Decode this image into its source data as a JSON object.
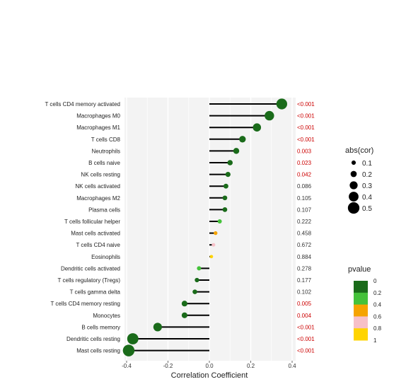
{
  "chart_data": {
    "type": "lollipop",
    "xlabel": "Correlation Coefficient",
    "xlim": [
      -0.4,
      0.45
    ],
    "xticks": [
      -0.4,
      -0.2,
      0.0,
      0.2,
      0.4
    ],
    "xtick_labels": [
      "-0.4",
      "-0.2",
      "0.0",
      "0.2",
      "0.4"
    ],
    "grid": true,
    "rows": [
      {
        "label": "T cells CD4 memory activated",
        "cor": 0.35,
        "pvalue_label": "<0.001",
        "pvalue": 0.0005,
        "significant": true
      },
      {
        "label": "Macrophages M0",
        "cor": 0.29,
        "pvalue_label": "<0.001",
        "pvalue": 0.0005,
        "significant": true
      },
      {
        "label": "Macrophages M1",
        "cor": 0.23,
        "pvalue_label": "<0.001",
        "pvalue": 0.0005,
        "significant": true
      },
      {
        "label": "T cells CD8",
        "cor": 0.16,
        "pvalue_label": "<0.001",
        "pvalue": 0.0005,
        "significant": true
      },
      {
        "label": "Neutrophils",
        "cor": 0.13,
        "pvalue_label": "0.003",
        "pvalue": 0.003,
        "significant": true
      },
      {
        "label": "B cells naive",
        "cor": 0.1,
        "pvalue_label": "0.023",
        "pvalue": 0.023,
        "significant": true
      },
      {
        "label": "NK cells resting",
        "cor": 0.09,
        "pvalue_label": "0.042",
        "pvalue": 0.042,
        "significant": true
      },
      {
        "label": "NK cells activated",
        "cor": 0.08,
        "pvalue_label": "0.086",
        "pvalue": 0.086,
        "significant": false
      },
      {
        "label": "Macrophages M2",
        "cor": 0.075,
        "pvalue_label": "0.105",
        "pvalue": 0.105,
        "significant": false
      },
      {
        "label": "Plasma cells",
        "cor": 0.075,
        "pvalue_label": "0.107",
        "pvalue": 0.107,
        "significant": false
      },
      {
        "label": "T cells follicular helper",
        "cor": 0.05,
        "pvalue_label": "0.222",
        "pvalue": 0.222,
        "significant": false
      },
      {
        "label": "Mast cells activated",
        "cor": 0.03,
        "pvalue_label": "0.458",
        "pvalue": 0.458,
        "significant": false
      },
      {
        "label": "T cells CD4 naive",
        "cor": 0.02,
        "pvalue_label": "0.672",
        "pvalue": 0.672,
        "significant": false
      },
      {
        "label": "Eosinophils",
        "cor": 0.01,
        "pvalue_label": "0.884",
        "pvalue": 0.884,
        "significant": false
      },
      {
        "label": "Dendritic cells activated",
        "cor": -0.05,
        "pvalue_label": "0.278",
        "pvalue": 0.278,
        "significant": false
      },
      {
        "label": "T cells regulatory (Tregs)",
        "cor": -0.06,
        "pvalue_label": "0.177",
        "pvalue": 0.177,
        "significant": false
      },
      {
        "label": "T cells gamma delta",
        "cor": -0.07,
        "pvalue_label": "0.102",
        "pvalue": 0.102,
        "significant": false
      },
      {
        "label": "T cells CD4 memory resting",
        "cor": -0.12,
        "pvalue_label": "0.005",
        "pvalue": 0.005,
        "significant": true
      },
      {
        "label": "Monocytes",
        "cor": -0.12,
        "pvalue_label": "0.004",
        "pvalue": 0.004,
        "significant": true
      },
      {
        "label": "B cells memory",
        "cor": -0.25,
        "pvalue_label": "<0.001",
        "pvalue": 0.0005,
        "significant": true
      },
      {
        "label": "Dendritic cells resting",
        "cor": -0.37,
        "pvalue_label": "<0.001",
        "pvalue": 0.0005,
        "significant": true
      },
      {
        "label": "Mast cells resting",
        "cor": -0.39,
        "pvalue_label": "<0.001",
        "pvalue": 0.0005,
        "significant": true
      }
    ],
    "size_legend": {
      "title": "abs(cor)",
      "items": [
        {
          "label": "0.1",
          "value": 0.1
        },
        {
          "label": "0.2",
          "value": 0.2
        },
        {
          "label": "0.3",
          "value": 0.3
        },
        {
          "label": "0.4",
          "value": 0.4
        },
        {
          "label": "0.5",
          "value": 0.5
        }
      ]
    },
    "color_legend": {
      "title": "pvalue",
      "breaks": [
        {
          "label": "0",
          "value": 0.0
        },
        {
          "label": "0.2",
          "value": 0.2
        },
        {
          "label": "0.4",
          "value": 0.4
        },
        {
          "label": "0.6",
          "value": 0.6
        },
        {
          "label": "0.8",
          "value": 0.8
        },
        {
          "label": "1",
          "value": 1.0
        }
      ],
      "bins": [
        {
          "from": 0.0,
          "to": 0.2,
          "color": "#1a6b1a"
        },
        {
          "from": 0.2,
          "to": 0.4,
          "color": "#44c23a"
        },
        {
          "from": 0.4,
          "to": 0.6,
          "color": "#f5a300"
        },
        {
          "from": 0.6,
          "to": 0.8,
          "color": "#f7c0c8"
        },
        {
          "from": 0.8,
          "to": 1.0,
          "color": "#ffd400"
        }
      ]
    },
    "colors": {
      "significant_text": "#cc0000",
      "normal_text": "#333333",
      "stem": "#000000",
      "panel_bg": "#f3f3f3",
      "grid": "#ffffff"
    }
  }
}
